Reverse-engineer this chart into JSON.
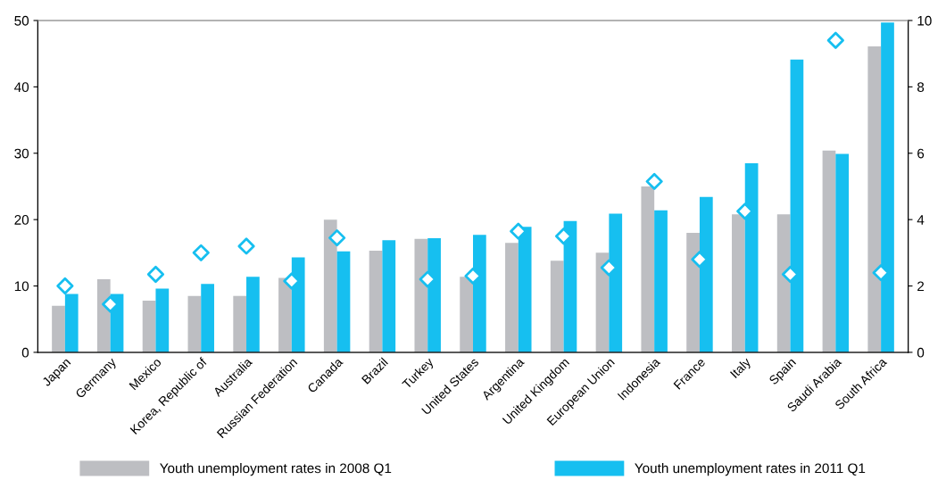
{
  "chart_data": {
    "type": "bar",
    "categories": [
      "Japan",
      "Germany",
      "Mexico",
      "Korea, Republic of",
      "Australia",
      "Russian Federation",
      "Canada",
      "Brazil",
      "Turkey",
      "United States",
      "Argentina",
      "United Kingdom",
      "European Union",
      "Indonesia",
      "France",
      "Italy",
      "Spain",
      "Saudi Arabia",
      "South Africa"
    ],
    "series": [
      {
        "name": "Youth unemployment rates in 2008 Q1",
        "color": "#bdbec2",
        "values": [
          7,
          11,
          7.8,
          8.5,
          8.5,
          11.2,
          20,
          15.3,
          17.1,
          11.4,
          16.5,
          13.8,
          15,
          25,
          18,
          20.8,
          20.8,
          30.4,
          46.1
        ]
      },
      {
        "name": "Youth unemployment rates in 2011 Q1",
        "color": "#16bff0",
        "values": [
          8.8,
          8.8,
          9.6,
          10.3,
          11.4,
          14.3,
          15.2,
          16.9,
          17.2,
          17.7,
          18.9,
          19.8,
          20.9,
          21.4,
          23.4,
          28.5,
          44.1,
          29.9,
          49.7
        ]
      },
      {
        "type": "scatter",
        "axis": "y2",
        "color": "#16bff0",
        "marker": "diamond",
        "values": [
          2.0,
          1.45,
          2.35,
          3.0,
          3.2,
          2.15,
          3.45,
          null,
          2.2,
          2.3,
          3.65,
          3.5,
          2.55,
          5.15,
          2.8,
          4.25,
          2.35,
          9.4,
          2.4
        ]
      }
    ],
    "ylim": [
      0,
      50
    ],
    "yticks": [
      0,
      10,
      20,
      30,
      40,
      50
    ],
    "y2lim": [
      0,
      10
    ],
    "y2ticks": [
      0,
      2,
      4,
      6,
      8,
      10
    ],
    "legend": "bottom",
    "grid": false
  }
}
